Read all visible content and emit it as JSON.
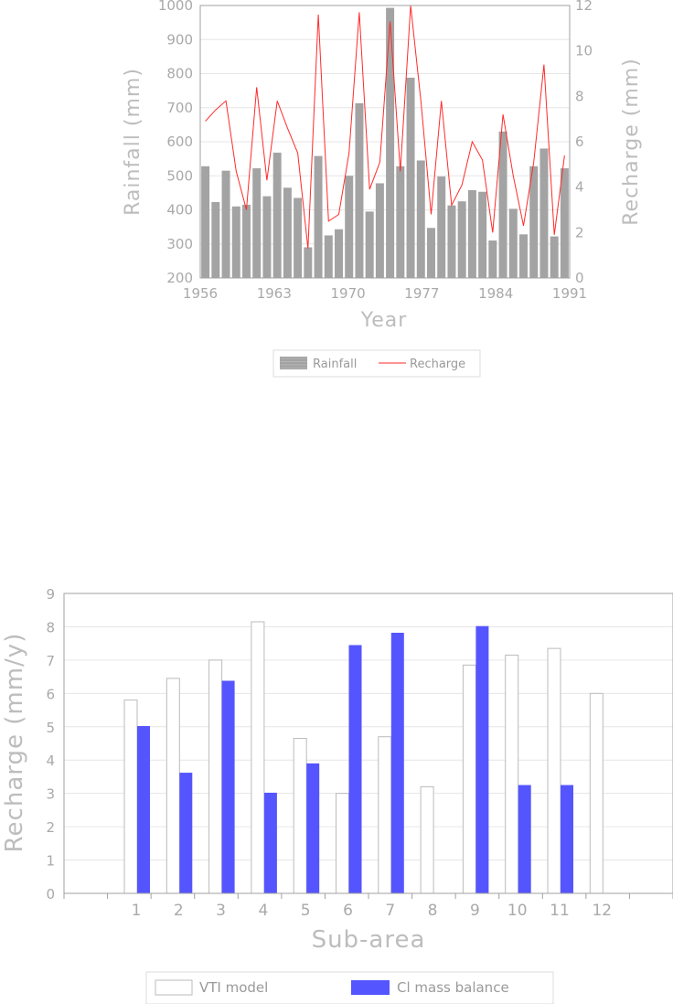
{
  "colors": {
    "rainfall_bar": "#a3a3a3",
    "recharge_line": "#ff2a2a",
    "vti_bar": "#ffffff",
    "cl_bar": "#5555ff",
    "axis": "#a0a0a0",
    "grid": "#e6e6e6",
    "text": "#a9a9a9"
  },
  "chart_data": [
    {
      "type": "bar",
      "title": "",
      "xlabel": "Year",
      "ylabel": "Rainfall (mm)",
      "y2label": "Recharge (mm)",
      "xlim": [
        1956,
        1991
      ],
      "ylim": [
        200,
        1000
      ],
      "y2lim": [
        0,
        12
      ],
      "x_ticks": [
        1956,
        1963,
        1970,
        1977,
        1984,
        1991
      ],
      "y_ticks": [
        200,
        300,
        400,
        500,
        600,
        700,
        800,
        900,
        1000
      ],
      "y2_ticks": [
        0,
        2,
        4,
        6,
        8,
        10,
        12
      ],
      "grid": true,
      "legend_position": "bottom-center",
      "years": [
        1956,
        1957,
        1958,
        1959,
        1960,
        1961,
        1962,
        1963,
        1964,
        1965,
        1966,
        1967,
        1968,
        1969,
        1970,
        1971,
        1972,
        1973,
        1974,
        1975,
        1976,
        1977,
        1978,
        1979,
        1980,
        1981,
        1982,
        1983,
        1984,
        1985,
        1986,
        1987,
        1988,
        1989,
        1990,
        1991
      ],
      "series": [
        {
          "name": "Rainfall",
          "type": "bar",
          "axis": "left",
          "values": [
            528,
            423,
            515,
            410,
            415,
            522,
            440,
            568,
            465,
            435,
            290,
            558,
            325,
            343,
            500,
            713,
            395,
            478,
            993,
            528,
            788,
            545,
            347,
            498,
            413,
            425,
            458,
            453,
            310,
            630,
            403,
            328,
            528,
            580,
            322,
            522
          ]
        },
        {
          "name": "Recharge",
          "type": "line",
          "axis": "right",
          "values": [
            6.9,
            7.4,
            7.8,
            4.7,
            3.0,
            8.4,
            4.3,
            7.8,
            6.6,
            5.5,
            1.3,
            11.6,
            2.5,
            2.8,
            5.5,
            11.7,
            3.9,
            5.1,
            11.3,
            4.7,
            12.0,
            7.8,
            2.8,
            7.8,
            3.2,
            4.1,
            6.0,
            5.2,
            2.0,
            7.2,
            4.5,
            2.3,
            5.1,
            9.4,
            1.9,
            5.4
          ]
        }
      ]
    },
    {
      "type": "bar",
      "title": "",
      "xlabel": "Sub-area",
      "ylabel": "Recharge (mm/y)",
      "ylim": [
        0,
        9
      ],
      "y_ticks": [
        0,
        1,
        2,
        3,
        4,
        5,
        6,
        7,
        8,
        9
      ],
      "grid": true,
      "legend_position": "bottom-center",
      "categories": [
        "1",
        "2",
        "3",
        "4",
        "5",
        "6",
        "7",
        "8",
        "9",
        "10",
        "11",
        "12"
      ],
      "series": [
        {
          "name": "VTI model",
          "values": [
            5.8,
            6.45,
            7.0,
            8.15,
            4.65,
            3.0,
            4.7,
            3.2,
            6.85,
            7.15,
            7.35,
            6.0
          ]
        },
        {
          "name": "Cl mass balance",
          "values": [
            5.02,
            3.62,
            6.38,
            3.02,
            3.9,
            7.45,
            7.82,
            null,
            8.02,
            3.25,
            3.25,
            null
          ]
        }
      ]
    }
  ]
}
